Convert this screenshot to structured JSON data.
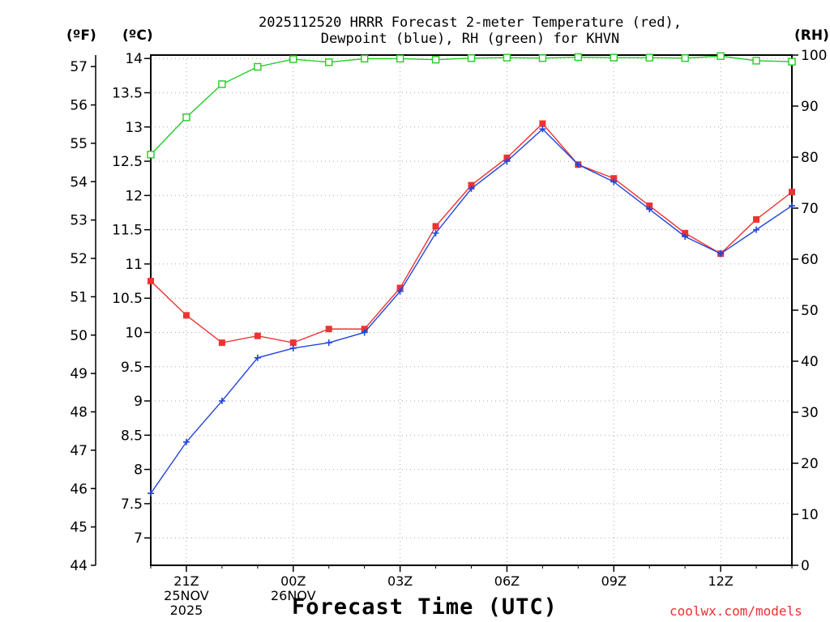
{
  "title_lines": [
    "2025112520 HRRR Forecast 2-meter Temperature (red),",
    "Dewpoint (blue), RH (green) for KHVN"
  ],
  "units": {
    "fahrenheit": "(ºF)",
    "celsius": "(ºC)",
    "rh": "(RH)"
  },
  "xlabel": "Forecast Time (UTC)",
  "watermark": "coolwx.com/models",
  "colors": {
    "temperature": "#ee3333",
    "dewpoint": "#2244dd",
    "rh": "#22cc22",
    "grid": "#aaaaaa"
  },
  "chart_data": {
    "type": "line",
    "x_hours": [
      20,
      21,
      22,
      23,
      24,
      25,
      26,
      27,
      28,
      29,
      30,
      31,
      32,
      33,
      34,
      35,
      36,
      37,
      38
    ],
    "xlim": [
      20,
      38
    ],
    "x_ticks": [
      {
        "hour": 21,
        "lines": [
          "21Z",
          "25NOV",
          "2025"
        ]
      },
      {
        "hour": 24,
        "lines": [
          "00Z",
          "26NOV"
        ]
      },
      {
        "hour": 27,
        "lines": [
          "03Z"
        ]
      },
      {
        "hour": 30,
        "lines": [
          "06Z"
        ]
      },
      {
        "hour": 33,
        "lines": [
          "09Z"
        ]
      },
      {
        "hour": 36,
        "lines": [
          "12Z"
        ]
      }
    ],
    "axes": {
      "celsius": {
        "range": [
          6.6,
          14.05
        ],
        "ticks": [
          "7",
          "7.5",
          "8",
          "8.5",
          "9",
          "9.5",
          "10",
          "10.5",
          "11",
          "11.5",
          "12",
          "12.5",
          "13",
          "13.5",
          "14"
        ]
      },
      "fahrenheit": {
        "range": [
          44,
          57.3
        ],
        "ticks": [
          "44",
          "45",
          "46",
          "47",
          "48",
          "49",
          "50",
          "51",
          "52",
          "53",
          "54",
          "55",
          "56",
          "57"
        ]
      },
      "rh": {
        "range": [
          0,
          100
        ],
        "ticks": [
          "0",
          "10",
          "20",
          "30",
          "40",
          "50",
          "60",
          "70",
          "80",
          "90",
          "100"
        ]
      }
    },
    "series": [
      {
        "name": "Temperature",
        "axis": "celsius",
        "marker": "filled-square",
        "values": [
          10.75,
          10.25,
          9.85,
          9.95,
          9.85,
          10.05,
          10.05,
          10.65,
          11.55,
          12.15,
          12.55,
          13.05,
          12.45,
          12.25,
          11.85,
          11.45,
          11.15,
          11.65,
          12.05
        ]
      },
      {
        "name": "Dewpoint",
        "axis": "celsius",
        "marker": "plus",
        "values": [
          7.65,
          8.4,
          9.0,
          9.63,
          9.77,
          9.85,
          10.0,
          10.6,
          11.45,
          12.1,
          12.5,
          12.97,
          12.45,
          12.2,
          11.8,
          11.4,
          11.15,
          11.5,
          11.85
        ]
      },
      {
        "name": "RH",
        "axis": "rh",
        "marker": "open-square",
        "values": [
          80.5,
          87.8,
          94.3,
          97.7,
          99.2,
          98.6,
          99.3,
          99.3,
          99.1,
          99.4,
          99.5,
          99.4,
          99.6,
          99.5,
          99.5,
          99.4,
          99.8,
          98.9,
          98.7
        ]
      }
    ]
  }
}
